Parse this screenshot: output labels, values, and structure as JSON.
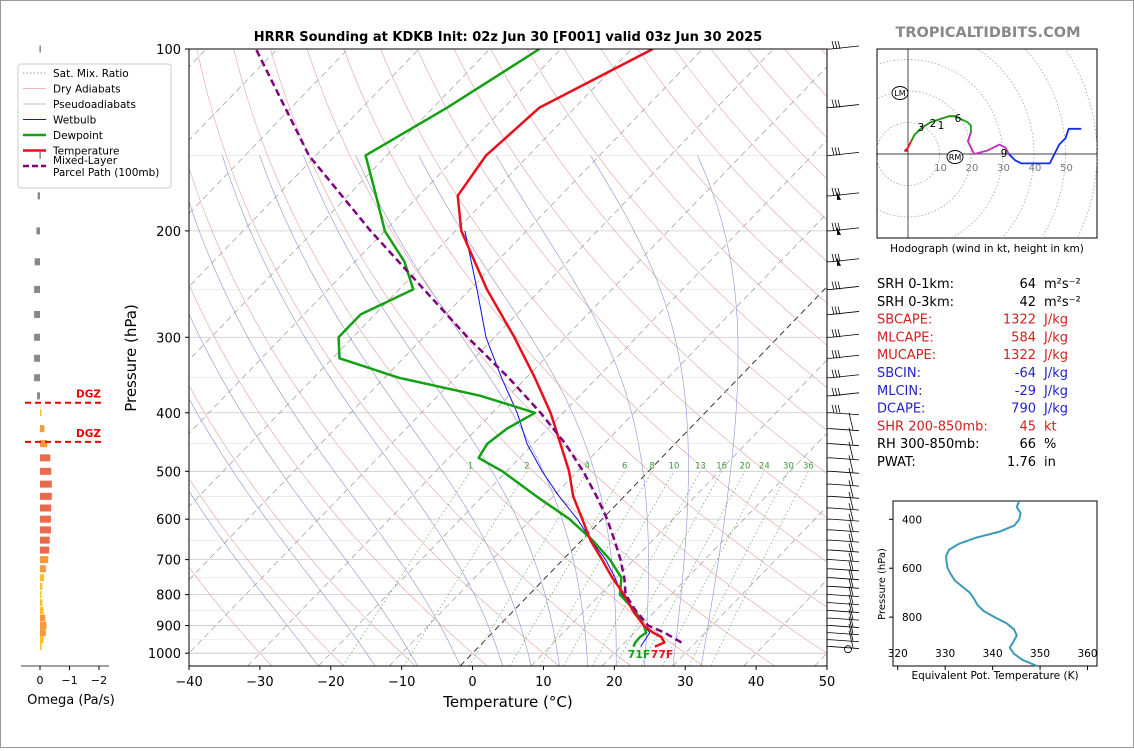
{
  "title": "HRRR Sounding at KDKB Init: 02z Jun 30 [F001] valid 03z Jun 30 2025",
  "brand": "TROPICALTIDBITS.COM",
  "colors": {
    "temperature": "#e8101c",
    "dewpoint": "#14a014",
    "parcel": "#800080",
    "wetbulb": "#1010e0",
    "srh_color": "#000000",
    "cape_color": "#d22020",
    "cin_color": "#2222cc",
    "theta_color": "#3a9ab8"
  },
  "legend": {
    "items": [
      {
        "label": "Sat. Mix. Ratio",
        "style": "dotted-green"
      },
      {
        "label": "Dry Adiabats",
        "style": "thin-red"
      },
      {
        "label": "Pseudoadiabats",
        "style": "thin-gray"
      },
      {
        "label": "Wetbulb",
        "style": "blue"
      },
      {
        "label": "Dewpoint",
        "style": "green-thick"
      },
      {
        "label": "Temperature",
        "style": "red-thick"
      },
      {
        "label": "Mixed-Layer\nParcel Path (100mb)",
        "style": "purple-dashed"
      }
    ]
  },
  "omega": {
    "xlabel": "Omega (Pa/s)",
    "ticks": [
      "0",
      "−1",
      "−2"
    ],
    "dgz_label": "DGZ",
    "bars": [
      {
        "p": 100,
        "w": 0.02
      },
      {
        "p": 150,
        "w": 0.02
      },
      {
        "p": 175,
        "w": 0.08
      },
      {
        "p": 200,
        "w": 0.12
      },
      {
        "p": 225,
        "w": 0.18
      },
      {
        "p": 250,
        "w": 0.2
      },
      {
        "p": 275,
        "w": 0.2
      },
      {
        "p": 300,
        "w": 0.2
      },
      {
        "p": 325,
        "w": 0.2
      },
      {
        "p": 350,
        "w": 0.2
      },
      {
        "p": 375,
        "w": 0.1
      },
      {
        "p": 400,
        "w": -0.05
      },
      {
        "p": 425,
        "w": -0.15
      },
      {
        "p": 450,
        "w": -0.25
      },
      {
        "p": 475,
        "w": -0.35
      },
      {
        "p": 500,
        "w": -0.38
      },
      {
        "p": 525,
        "w": -0.4
      },
      {
        "p": 550,
        "w": -0.4
      },
      {
        "p": 575,
        "w": -0.38
      },
      {
        "p": 600,
        "w": -0.37
      },
      {
        "p": 625,
        "w": -0.37
      },
      {
        "p": 650,
        "w": -0.33
      },
      {
        "p": 675,
        "w": -0.31
      },
      {
        "p": 700,
        "w": -0.28
      },
      {
        "p": 725,
        "w": -0.2
      },
      {
        "p": 750,
        "w": -0.14
      },
      {
        "p": 775,
        "w": -0.08
      },
      {
        "p": 800,
        "w": -0.05
      },
      {
        "p": 825,
        "w": -0.08
      },
      {
        "p": 850,
        "w": -0.12
      },
      {
        "p": 875,
        "w": -0.18
      },
      {
        "p": 900,
        "w": -0.22
      },
      {
        "p": 925,
        "w": -0.2
      },
      {
        "p": 950,
        "w": -0.12
      },
      {
        "p": 975,
        "w": -0.05
      }
    ],
    "dgz_pressures": [
      385,
      447
    ]
  },
  "chart_data": [
    {
      "type": "line",
      "name": "skew-t",
      "xlabel": "Temperature (°C)",
      "ylabel": "Pressure (hPa)",
      "xlim": [
        -40,
        50
      ],
      "ylim": [
        1050,
        100
      ],
      "xticks": [
        -40,
        -30,
        -20,
        -10,
        0,
        10,
        20,
        30,
        40,
        50
      ],
      "yticks": [
        100,
        200,
        300,
        400,
        500,
        600,
        700,
        800,
        900,
        1000
      ],
      "surface_labels": {
        "dewpoint": "71F",
        "temperature": "77F"
      },
      "mixing_ratio_labels": [
        "1",
        "2",
        "4",
        "6",
        "8",
        "10",
        "13",
        "16",
        "20",
        "24",
        "30",
        "36"
      ],
      "mixing_ratio_values": [
        1,
        2,
        4,
        6,
        8,
        10,
        13,
        16,
        20,
        24,
        30,
        36
      ],
      "series": [
        {
          "name": "Temperature",
          "p": [
            975,
            960,
            940,
            925,
            900,
            850,
            800,
            750,
            700,
            650,
            600,
            550,
            500,
            450,
            400,
            350,
            300,
            250,
            200,
            175,
            150,
            125,
            100
          ],
          "t": [
            24.8,
            25.6,
            24.4,
            22.7,
            20.4,
            16.8,
            13.4,
            9.4,
            5.5,
            1.2,
            -2.8,
            -7.2,
            -11.2,
            -16.2,
            -21.8,
            -28.8,
            -37.2,
            -47.6,
            -59.2,
            -64.5,
            -66,
            -65,
            -57
          ]
        },
        {
          "name": "Dewpoint",
          "p": [
            975,
            960,
            940,
            925,
            900,
            850,
            800,
            750,
            700,
            650,
            600,
            550,
            500,
            475,
            450,
            425,
            400,
            375,
            350,
            325,
            300,
            275,
            250,
            225,
            200,
            175,
            150,
            125,
            100
          ],
          "t": [
            21.8,
            21.5,
            21.4,
            21.7,
            20.4,
            17.1,
            12.8,
            10.7,
            6.6,
            1.5,
            -4.6,
            -12.4,
            -20.6,
            -25.8,
            -26.5,
            -25.8,
            -24.0,
            -34,
            -48,
            -59,
            -62,
            -62,
            -58,
            -63,
            -70,
            -76,
            -83,
            -78,
            -73
          ]
        },
        {
          "name": "Wetbulb",
          "p": [
            975,
            925,
            900,
            850,
            800,
            750,
            700,
            650,
            600,
            550,
            500,
            450,
            400,
            350,
            300,
            250,
            200
          ],
          "t": [
            22.8,
            22.2,
            20.4,
            17.0,
            13.1,
            9.8,
            6.0,
            1.3,
            -3.5,
            -9.2,
            -15,
            -20.9,
            -26.5,
            -33.5,
            -41.2,
            -49,
            -58.7
          ]
        },
        {
          "name": "Mixed-Layer Parcel Path (100mb)",
          "p": [
            960,
            925,
            900,
            850,
            800,
            750,
            700,
            650,
            600,
            550,
            500,
            450,
            400,
            350,
            300,
            250,
            200,
            150,
            100
          ],
          "t": [
            28,
            24.3,
            21.0,
            17.2,
            13.6,
            11.1,
            8.1,
            4.6,
            0.7,
            -3.9,
            -9.2,
            -15.5,
            -23.2,
            -32.5,
            -43.8,
            -56.5,
            -72,
            -91,
            -113
          ]
        }
      ]
    },
    {
      "type": "line",
      "name": "hodograph",
      "caption": "Hodograph (wind in kt, height in km)",
      "xticks": [
        10,
        20,
        30,
        40,
        50
      ],
      "labels": {
        "lm": "LM",
        "rm": "RM",
        "km": [
          "3",
          "2",
          "1",
          "6",
          "9"
        ]
      },
      "u": [
        0,
        -1,
        0,
        1,
        2,
        4,
        7,
        10,
        13,
        15,
        17,
        19,
        20,
        20,
        19,
        20,
        21,
        25,
        29,
        31,
        32,
        33,
        34,
        36,
        38,
        42,
        45,
        48,
        49,
        50,
        51,
        52,
        55
      ],
      "v": [
        1,
        1,
        2,
        4,
        6,
        8,
        10,
        11,
        12,
        12,
        11,
        10,
        9,
        7,
        4,
        2,
        0,
        1,
        3,
        2,
        0,
        -1,
        -2,
        -3,
        -3,
        -3,
        -3,
        3,
        4,
        5,
        8,
        8,
        8
      ],
      "segments": [
        {
          "from": 0,
          "to": 9,
          "color": "#e8101c"
        },
        {
          "from": 3,
          "to": 14,
          "color": "#14a014"
        },
        {
          "from": 13,
          "to": 21,
          "color": "#c030c0"
        },
        {
          "from": 20,
          "to": 32,
          "color": "#1030e0"
        }
      ]
    },
    {
      "type": "line",
      "name": "theta-e",
      "xlabel": "Equivalent Pot. Temperature (K)",
      "ylabel": "Pressure (hPa)",
      "xticks": [
        320,
        330,
        340,
        350,
        360
      ],
      "yticks": [
        400,
        600,
        800
      ],
      "xlim": [
        319,
        362
      ],
      "ylim": [
        1000,
        325
      ],
      "p": [
        325,
        350,
        375,
        400,
        425,
        450,
        475,
        500,
        525,
        550,
        575,
        600,
        625,
        650,
        675,
        700,
        725,
        750,
        775,
        800,
        825,
        850,
        875,
        900,
        925,
        950,
        975,
        1000
      ],
      "theta": [
        345.6,
        345.1,
        345.9,
        345.6,
        344.6,
        341.5,
        336.5,
        332.9,
        330.8,
        330.2,
        330.3,
        330.5,
        331.2,
        332.0,
        333.6,
        335.2,
        336.1,
        336.8,
        338.1,
        340.4,
        342.9,
        344.5,
        345.1,
        344.4,
        343.6,
        344.5,
        346.3,
        349.4
      ]
    }
  ],
  "indices": [
    {
      "label": "SRH 0-1km:",
      "value": "64",
      "unit": "m²s⁻²",
      "color": "#000000"
    },
    {
      "label": "SRH 0-3km:",
      "value": "42",
      "unit": "m²s⁻²",
      "color": "#000000"
    },
    {
      "label": "SBCAPE:",
      "value": "1322",
      "unit": "J/kg",
      "color": "#d22020"
    },
    {
      "label": "MLCAPE:",
      "value": "584",
      "unit": "J/kg",
      "color": "#d22020"
    },
    {
      "label": "MUCAPE:",
      "value": "1322",
      "unit": "J/kg",
      "color": "#d22020"
    },
    {
      "label": "SBCIN:",
      "value": "-64",
      "unit": "J/kg",
      "color": "#2222cc"
    },
    {
      "label": "MLCIN:",
      "value": "-29",
      "unit": "J/kg",
      "color": "#2222cc"
    },
    {
      "label": "DCAPE:",
      "value": "790",
      "unit": "J/kg",
      "color": "#2222cc"
    },
    {
      "label": "SHR 200-850mb:",
      "value": "45",
      "unit": "kt",
      "color": "#d22020"
    },
    {
      "label": "RH 300-850mb:",
      "value": "66",
      "unit": "%",
      "color": "#000000"
    },
    {
      "label": "PWAT:",
      "value": "1.76",
      "unit": "in",
      "color": "#000000"
    }
  ]
}
